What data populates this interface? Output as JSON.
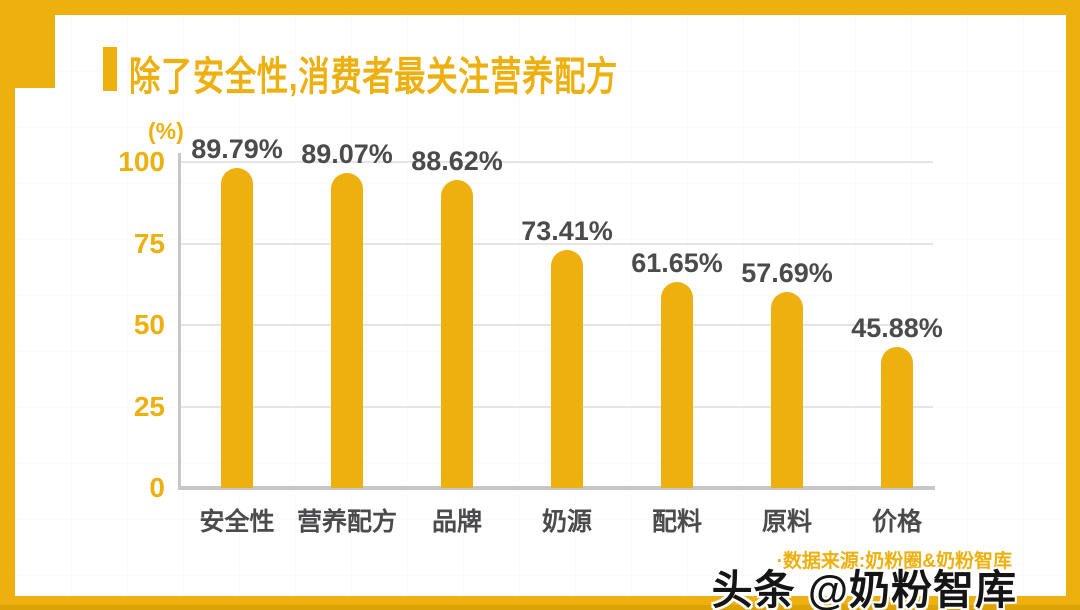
{
  "header": {
    "title": "除了安全性,消费者最关注营养配方"
  },
  "chart_data": {
    "type": "bar",
    "title": "除了安全性,消费者最关注营养配方",
    "categories": [
      "安全性",
      "营养配方",
      "品牌",
      "奶源",
      "配料",
      "原料",
      "价格"
    ],
    "values": [
      89.79,
      89.07,
      88.62,
      73.41,
      61.65,
      57.69,
      45.88
    ],
    "value_labels": [
      "89.79%",
      "89.07%",
      "88.62%",
      "73.41%",
      "61.65%",
      "57.69%",
      "45.88%"
    ],
    "xlabel": "",
    "ylabel": "(%)",
    "ylim": [
      0,
      100
    ],
    "yticks": [
      0,
      25,
      50,
      75,
      100
    ],
    "grid": "horizontal-only",
    "legend": "none",
    "bar_color": "#EDB00E",
    "layout": {
      "visual_heights_pct": [
        98.2,
        96.6,
        94.5,
        73.0,
        63.2,
        60.1,
        43.3
      ]
    }
  },
  "footer": {
    "source": "·数据来源:奶粉圈&奶粉智库",
    "watermark": "头条 @奶粉智库"
  },
  "colors": {
    "accent": "#EDB00E",
    "text_dark": "#4B4B4D",
    "axis_line": "#C7C7C7",
    "gridline": "#E4E4E4",
    "background": "#FFFFFF",
    "watermark_text": "#151515"
  }
}
